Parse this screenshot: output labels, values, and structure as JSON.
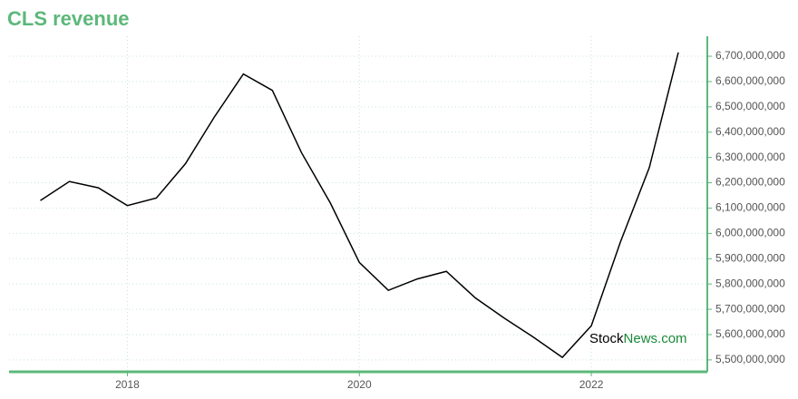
{
  "chart_data": {
    "type": "line",
    "title": "CLS revenue",
    "x": [
      2017.25,
      2017.5,
      2017.75,
      2018.0,
      2018.25,
      2018.5,
      2018.75,
      2019.0,
      2019.25,
      2019.5,
      2019.75,
      2020.0,
      2020.25,
      2020.5,
      2020.75,
      2021.0,
      2021.25,
      2021.5,
      2021.75,
      2022.0,
      2022.25,
      2022.5,
      2022.75
    ],
    "series": [
      {
        "name": "CLS revenue",
        "color": "#000000",
        "values": [
          6130000000,
          6205000000,
          6180000000,
          6110000000,
          6140000000,
          6275000000,
          6460000000,
          6630000000,
          6565000000,
          6320000000,
          6120000000,
          5885000000,
          5775000000,
          5820000000,
          5850000000,
          5745000000,
          5665000000,
          5590000000,
          5510000000,
          5635000000,
          5965000000,
          6260000000,
          6715000000
        ]
      }
    ],
    "xlim": [
      2016.98,
      2023.0
    ],
    "xticks": [
      2018,
      2020,
      2022
    ],
    "ylim": [
      5453000000,
      6779000000
    ],
    "yticks": [
      {
        "value": 5500000000,
        "label": "5,500,000,000"
      },
      {
        "value": 5600000000,
        "label": "5,600,000,000"
      },
      {
        "value": 5700000000,
        "label": "5,700,000,000"
      },
      {
        "value": 5800000000,
        "label": "5,800,000,000"
      },
      {
        "value": 5900000000,
        "label": "5,900,000,000"
      },
      {
        "value": 6000000000,
        "label": "6,000,000,000"
      },
      {
        "value": 6100000000,
        "label": "6,100,000,000"
      },
      {
        "value": 6200000000,
        "label": "6,200,000,000"
      },
      {
        "value": 6300000000,
        "label": "6,300,000,000"
      },
      {
        "value": 6400000000,
        "label": "6,400,000,000"
      },
      {
        "value": 6500000000,
        "label": "6,500,000,000"
      },
      {
        "value": 6600000000,
        "label": "6,600,000,000"
      },
      {
        "value": 6700000000,
        "label": "6,700,000,000"
      }
    ],
    "grid": true,
    "axis_color": "#5cb87a",
    "watermark": [
      "Stock",
      "News",
      ".com"
    ]
  }
}
